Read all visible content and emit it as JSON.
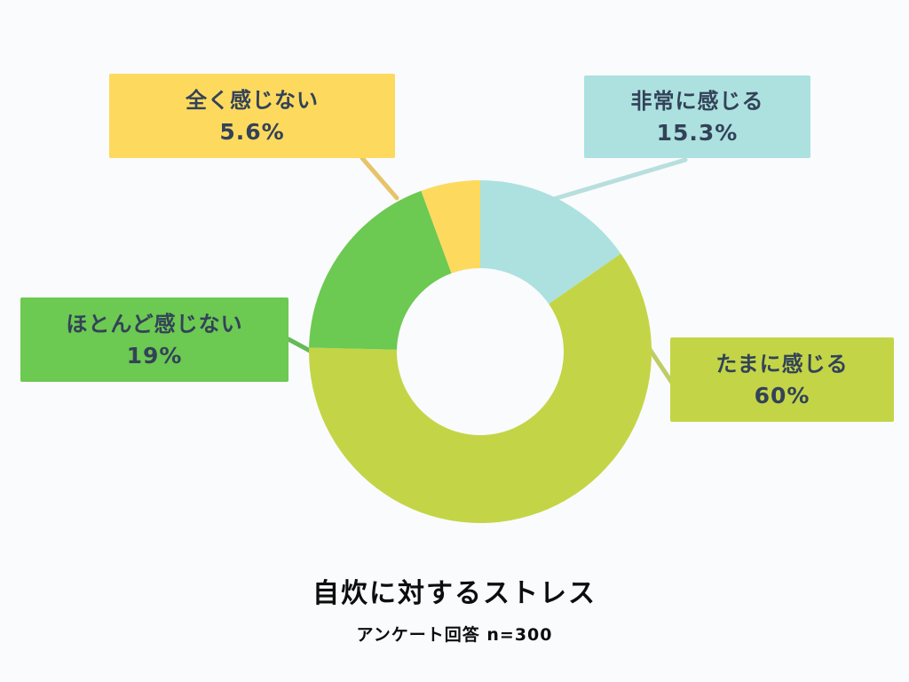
{
  "page": {
    "background": "#fafbfd"
  },
  "title": "自炊に対するストレス",
  "subtitle": "アンケート回答 n=300",
  "chart_data": {
    "type": "pie",
    "subtype": "donut",
    "title": "自炊に対するストレス",
    "subtitle": "アンケート回答 n=300",
    "sample_size": 300,
    "unit": "%",
    "direction": "clockwise",
    "start_angle_deg": 0,
    "donut_hole_ratio": 0.49,
    "legend_position": "callout-boxes",
    "slices": [
      {
        "label": "非常に感じる",
        "value": 15.3,
        "display": "15.3%",
        "color": "#ace1e0",
        "line_color": "#b7dfdd",
        "text_color": "#334258"
      },
      {
        "label": "たまに感じる",
        "value": 60,
        "display": "60%",
        "color": "#c3d546",
        "line_color": "#bfcc66",
        "text_color": "#334258"
      },
      {
        "label": "ほとんど感じない",
        "value": 19,
        "display": "19%",
        "color": "#6cc952",
        "line_color": "#65b957",
        "text_color": "#334258"
      },
      {
        "label": "全く感じない",
        "value": 5.6,
        "display": "5.6%",
        "color": "#fdda5e",
        "line_color": "#e7c469",
        "text_color": "#334258"
      }
    ]
  }
}
